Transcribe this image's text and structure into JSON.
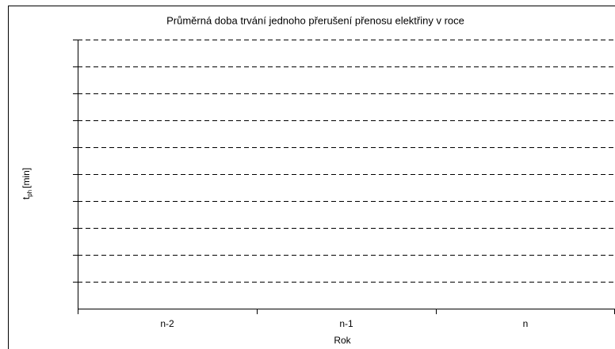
{
  "chart_data": {
    "type": "bar",
    "title": "Průměrná doba trvání jednoho přerušení přenosu elektřiny v roce",
    "categories": [
      "n-2",
      "n-1",
      "n"
    ],
    "values": [
      null,
      null,
      null
    ],
    "x_label": "Rok",
    "y_label": {
      "base": "t",
      "sub": "ph",
      "unit": "[min]"
    },
    "grid": true
  }
}
